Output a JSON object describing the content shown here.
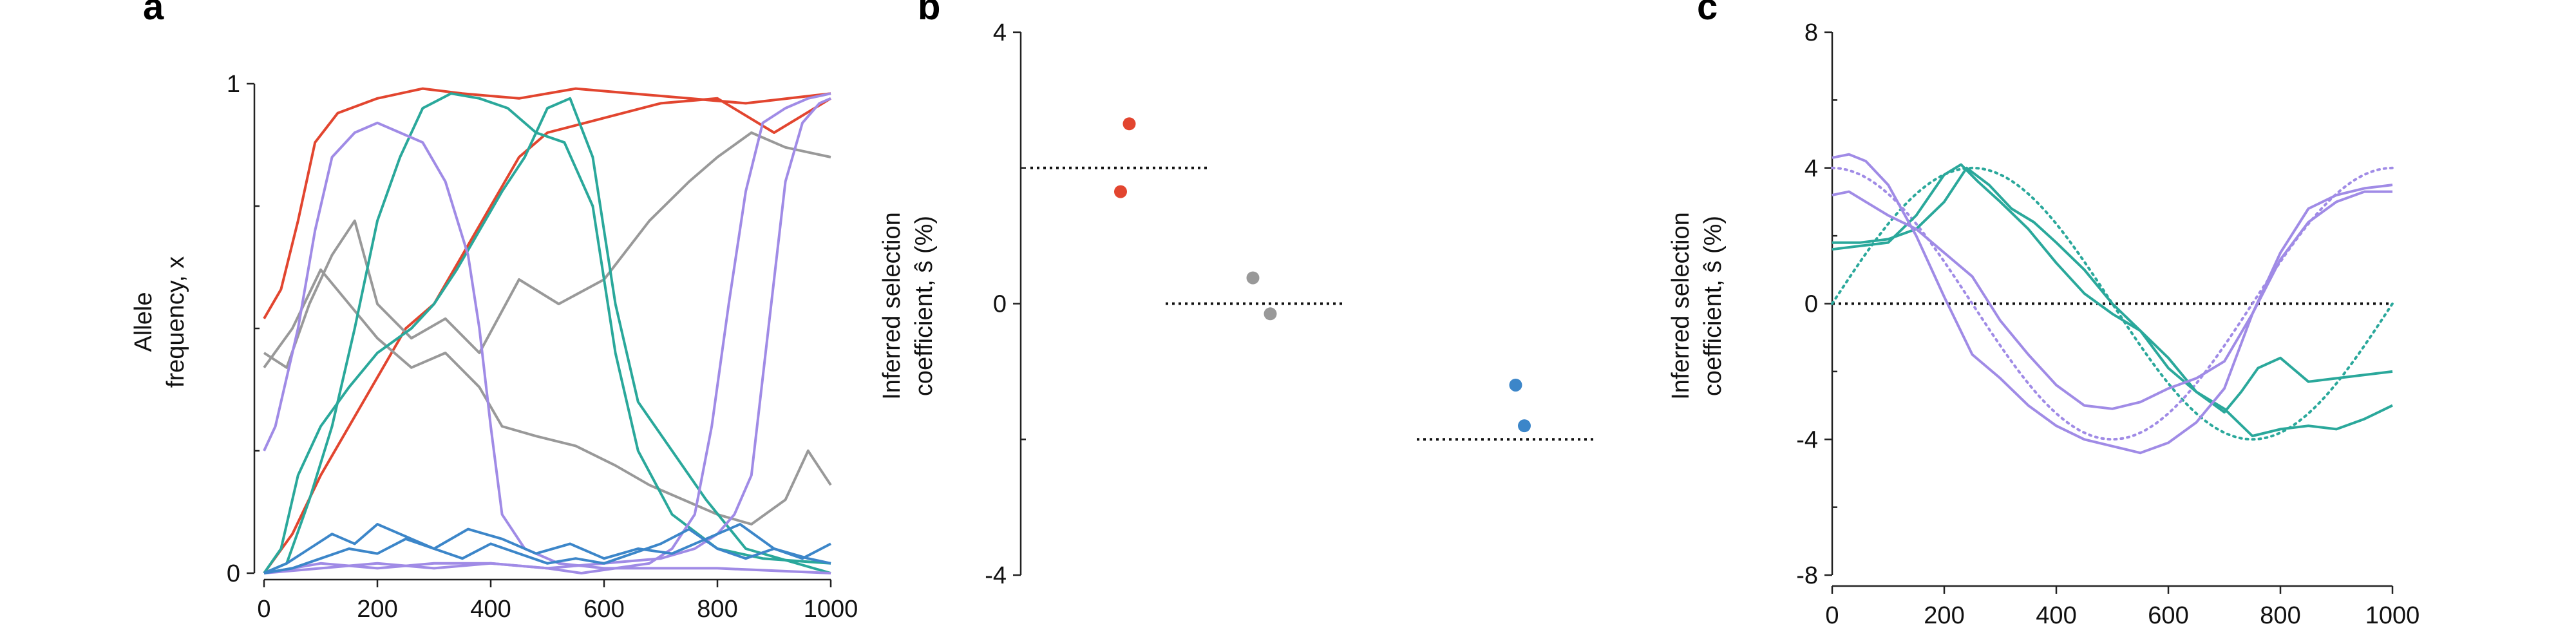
{
  "colors": {
    "red": "#e2452f",
    "gray": "#999999",
    "teal": "#2aa89b",
    "purple": "#a08be6",
    "blue": "#3c86c9"
  },
  "chart_data": [
    {
      "panel": "a",
      "type": "line",
      "ylabel_line1": "Allele",
      "ylabel_line2": "frequency, x",
      "xlim": [
        0,
        1000
      ],
      "ylim": [
        0,
        1
      ],
      "xticks": [
        0,
        200,
        400,
        600,
        800,
        1000
      ],
      "yticks": [
        0,
        1
      ],
      "series": [
        {
          "color": "red",
          "x": [
            0,
            30,
            60,
            90,
            130,
            200,
            280,
            350,
            450,
            550,
            650,
            750,
            850,
            1000
          ],
          "y": [
            0.52,
            0.58,
            0.72,
            0.88,
            0.94,
            0.97,
            0.99,
            0.98,
            0.97,
            0.99,
            0.98,
            0.97,
            0.96,
            0.98
          ]
        },
        {
          "color": "red",
          "x": [
            0,
            50,
            100,
            150,
            200,
            250,
            300,
            350,
            400,
            450,
            500,
            600,
            700,
            800,
            900,
            1000
          ],
          "y": [
            0.0,
            0.08,
            0.2,
            0.3,
            0.4,
            0.5,
            0.55,
            0.65,
            0.75,
            0.85,
            0.9,
            0.93,
            0.96,
            0.97,
            0.9,
            0.97
          ]
        },
        {
          "color": "gray",
          "x": [
            0,
            40,
            80,
            120,
            160,
            200,
            260,
            320,
            380,
            450,
            520,
            600,
            680,
            750,
            800,
            860,
            920,
            1000
          ],
          "y": [
            0.45,
            0.42,
            0.55,
            0.65,
            0.72,
            0.55,
            0.48,
            0.52,
            0.45,
            0.6,
            0.55,
            0.6,
            0.72,
            0.8,
            0.85,
            0.9,
            0.87,
            0.85
          ]
        },
        {
          "color": "gray",
          "x": [
            0,
            50,
            100,
            150,
            200,
            260,
            320,
            380,
            420,
            480,
            550,
            620,
            680,
            740,
            800,
            860,
            920,
            960,
            1000
          ],
          "y": [
            0.42,
            0.5,
            0.62,
            0.55,
            0.48,
            0.42,
            0.45,
            0.38,
            0.3,
            0.28,
            0.26,
            0.22,
            0.18,
            0.15,
            0.12,
            0.1,
            0.15,
            0.25,
            0.18
          ]
        },
        {
          "color": "teal",
          "x": [
            0,
            40,
            80,
            120,
            160,
            200,
            240,
            280,
            330,
            380,
            430,
            480,
            530,
            580,
            620,
            660,
            720,
            800,
            880,
            1000
          ],
          "y": [
            0.0,
            0.02,
            0.15,
            0.3,
            0.5,
            0.72,
            0.85,
            0.95,
            0.98,
            0.97,
            0.95,
            0.9,
            0.88,
            0.75,
            0.45,
            0.25,
            0.12,
            0.05,
            0.03,
            0.02
          ]
        },
        {
          "color": "teal",
          "x": [
            0,
            30,
            60,
            100,
            150,
            200,
            260,
            300,
            340,
            380,
            420,
            460,
            500,
            540,
            580,
            620,
            660,
            720,
            780,
            850,
            1000
          ],
          "y": [
            0.0,
            0.05,
            0.2,
            0.3,
            0.38,
            0.45,
            0.5,
            0.55,
            0.62,
            0.7,
            0.78,
            0.85,
            0.95,
            0.97,
            0.85,
            0.55,
            0.35,
            0.25,
            0.15,
            0.05,
            0.0
          ]
        },
        {
          "color": "purple",
          "x": [
            0,
            20,
            40,
            60,
            90,
            120,
            160,
            200,
            240,
            280,
            320,
            360,
            380,
            400,
            420,
            460,
            520,
            600,
            700,
            800,
            1000
          ],
          "y": [
            0.25,
            0.3,
            0.4,
            0.5,
            0.7,
            0.85,
            0.9,
            0.92,
            0.9,
            0.88,
            0.8,
            0.65,
            0.5,
            0.3,
            0.12,
            0.05,
            0.02,
            0.01,
            0.01,
            0.01,
            0.0
          ]
        },
        {
          "color": "purple",
          "x": [
            0,
            100,
            200,
            300,
            400,
            500,
            560,
            620,
            680,
            720,
            760,
            790,
            820,
            850,
            880,
            920,
            960,
            1000
          ],
          "y": [
            0.0,
            0.02,
            0.01,
            0.02,
            0.02,
            0.01,
            0.0,
            0.01,
            0.02,
            0.05,
            0.12,
            0.3,
            0.55,
            0.78,
            0.92,
            0.95,
            0.97,
            0.98
          ]
        },
        {
          "color": "purple",
          "x": [
            0,
            100,
            200,
            300,
            400,
            500,
            600,
            700,
            760,
            800,
            830,
            860,
            880,
            900,
            920,
            950,
            980,
            1000
          ],
          "y": [
            0.0,
            0.01,
            0.02,
            0.01,
            0.02,
            0.01,
            0.02,
            0.03,
            0.05,
            0.08,
            0.12,
            0.2,
            0.4,
            0.6,
            0.8,
            0.92,
            0.96,
            0.97
          ]
        },
        {
          "color": "blue",
          "x": [
            0,
            40,
            80,
            120,
            160,
            200,
            240,
            300,
            360,
            420,
            480,
            540,
            600,
            660,
            720,
            780,
            840,
            900,
            960,
            1000
          ],
          "y": [
            0.0,
            0.02,
            0.05,
            0.08,
            0.06,
            0.1,
            0.08,
            0.05,
            0.09,
            0.07,
            0.04,
            0.06,
            0.03,
            0.05,
            0.04,
            0.07,
            0.1,
            0.05,
            0.03,
            0.02
          ]
        },
        {
          "color": "blue",
          "x": [
            0,
            50,
            100,
            150,
            200,
            250,
            300,
            350,
            400,
            450,
            500,
            550,
            600,
            650,
            700,
            750,
            800,
            850,
            900,
            950,
            1000
          ],
          "y": [
            0.0,
            0.01,
            0.03,
            0.05,
            0.04,
            0.07,
            0.05,
            0.03,
            0.06,
            0.04,
            0.02,
            0.03,
            0.02,
            0.04,
            0.06,
            0.09,
            0.05,
            0.03,
            0.05,
            0.03,
            0.06
          ]
        }
      ]
    },
    {
      "panel": "b",
      "type": "scatter",
      "ylabel_line1": "Inferred selection",
      "ylabel_line2": "coefficient, ŝ (%)",
      "ylim": [
        -4,
        4
      ],
      "yticks": [
        -4,
        0,
        4
      ],
      "true_values": [
        {
          "color": "red",
          "group": 0,
          "y": 2
        },
        {
          "color": "gray",
          "group": 1,
          "y": 0
        },
        {
          "color": "blue",
          "group": 2,
          "y": -2
        }
      ],
      "points": [
        {
          "color": "red",
          "group": 0,
          "offset": 0.3,
          "y": 2.65
        },
        {
          "color": "red",
          "group": 0,
          "offset": 0.0,
          "y": 1.65
        },
        {
          "color": "gray",
          "group": 1,
          "offset": -0.1,
          "y": 0.38
        },
        {
          "color": "gray",
          "group": 1,
          "offset": 0.5,
          "y": -0.15
        },
        {
          "color": "blue",
          "group": 2,
          "offset": 0.3,
          "y": -1.2
        },
        {
          "color": "blue",
          "group": 2,
          "offset": 0.6,
          "y": -1.8
        }
      ]
    },
    {
      "panel": "c",
      "type": "line",
      "ylabel_line1": "Inferred selection",
      "ylabel_line2": "coefficient, ŝ (%)",
      "xlim": [
        0,
        1000
      ],
      "ylim": [
        -8,
        8
      ],
      "xticks": [
        0,
        200,
        400,
        600,
        800,
        1000
      ],
      "yticks": [
        -8,
        -4,
        0,
        4,
        8
      ],
      "series": [
        {
          "color": "teal",
          "dotted": true,
          "function": "sin",
          "amplitude": 4,
          "period": 1000,
          "phase": 0
        },
        {
          "color": "purple",
          "dotted": true,
          "function": "cos",
          "amplitude": 4,
          "period": 1000,
          "phase": 0
        },
        {
          "color": "teal",
          "x": [
            0,
            50,
            100,
            150,
            200,
            230,
            260,
            300,
            350,
            400,
            450,
            500,
            550,
            600,
            650,
            700,
            750,
            800,
            850,
            900,
            950,
            1000
          ],
          "y": [
            1.6,
            1.7,
            1.8,
            2.6,
            3.8,
            4.1,
            3.6,
            3.0,
            2.2,
            1.2,
            0.3,
            -0.3,
            -0.8,
            -1.9,
            -2.6,
            -3.1,
            -3.9,
            -3.7,
            -3.6,
            -3.7,
            -3.4,
            -3.0
          ]
        },
        {
          "color": "teal",
          "x": [
            0,
            50,
            100,
            150,
            200,
            240,
            280,
            320,
            360,
            400,
            450,
            500,
            550,
            600,
            650,
            700,
            730,
            760,
            800,
            850,
            900,
            950,
            1000
          ],
          "y": [
            1.8,
            1.8,
            1.9,
            2.2,
            3.0,
            4.0,
            3.5,
            2.8,
            2.4,
            1.8,
            1.0,
            0.0,
            -0.8,
            -1.6,
            -2.6,
            -3.2,
            -2.6,
            -1.9,
            -1.6,
            -2.3,
            -2.2,
            -2.1,
            -2.0
          ]
        },
        {
          "color": "purple",
          "x": [
            0,
            30,
            60,
            100,
            150,
            200,
            250,
            300,
            350,
            400,
            450,
            500,
            550,
            600,
            650,
            700,
            750,
            800,
            850,
            900,
            950,
            1000
          ],
          "y": [
            4.3,
            4.4,
            4.2,
            3.5,
            2.0,
            0.2,
            -1.5,
            -2.2,
            -3.0,
            -3.6,
            -4.0,
            -4.2,
            -4.4,
            -4.1,
            -3.5,
            -2.5,
            -0.3,
            1.5,
            2.8,
            3.2,
            3.4,
            3.5
          ]
        },
        {
          "color": "purple",
          "x": [
            0,
            30,
            60,
            100,
            150,
            200,
            250,
            300,
            350,
            400,
            450,
            500,
            550,
            600,
            650,
            700,
            750,
            800,
            850,
            900,
            950,
            1000
          ],
          "y": [
            3.2,
            3.3,
            3.0,
            2.6,
            2.2,
            1.5,
            0.8,
            -0.5,
            -1.5,
            -2.4,
            -3.0,
            -3.1,
            -2.9,
            -2.5,
            -2.2,
            -1.7,
            -0.3,
            1.3,
            2.4,
            3.0,
            3.3,
            3.3
          ]
        }
      ]
    }
  ]
}
